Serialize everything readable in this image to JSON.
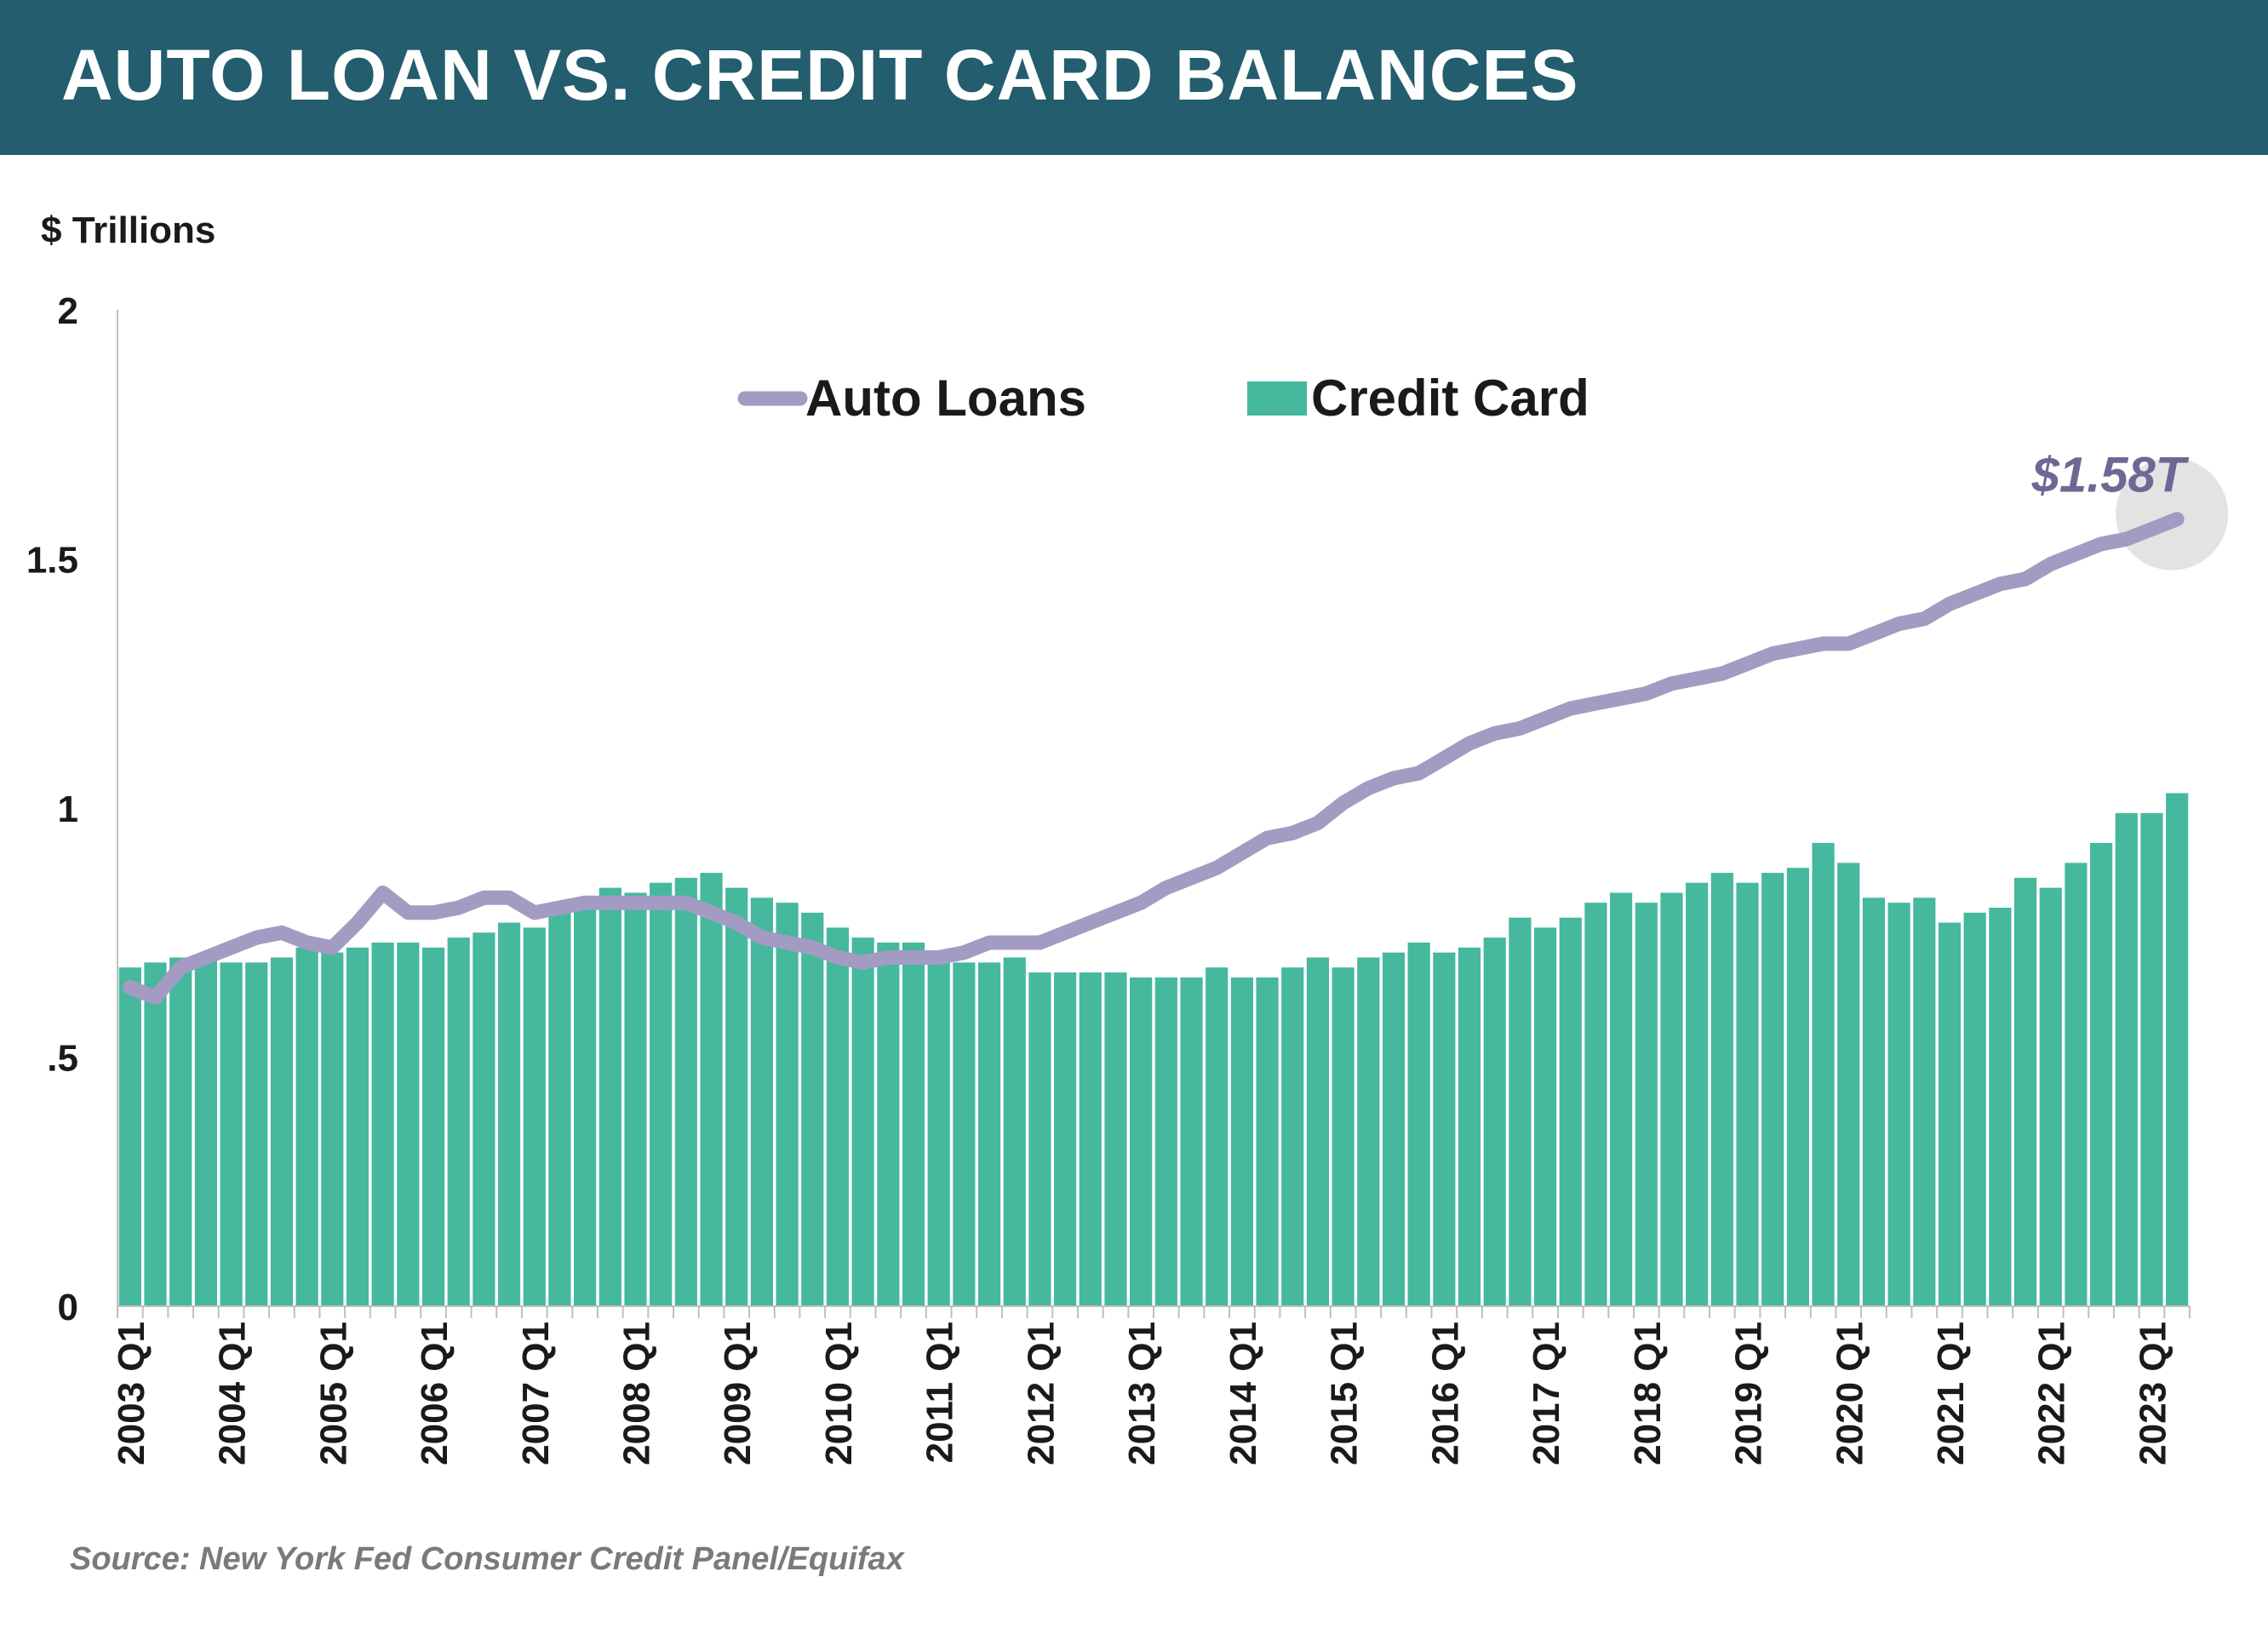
{
  "header": {
    "title": "AUTO LOAN VS. CREDIT CARD BALANCES"
  },
  "source": "Source: New York Fed Consumer Credit Panel/Equifax",
  "colors": {
    "banner": "#235d6e",
    "auto_loans": "#a49bc3",
    "credit_card": "#45b89e",
    "annotation": "#6f6794",
    "highlight": "#e3e3e3"
  },
  "chart_data": {
    "type": "bar+line",
    "ylabel": "$ Trillions",
    "ylim": [
      0,
      2
    ],
    "yticks": [
      {
        "value": 0,
        "label": "0"
      },
      {
        "value": 0.5,
        "label": ".5"
      },
      {
        "value": 1,
        "label": "1"
      },
      {
        "value": 1.5,
        "label": "1.5"
      },
      {
        "value": 2,
        "label": "2"
      }
    ],
    "x_start": "2003 Q1",
    "xtick_labels": [
      "2003 Q1",
      "2004 Q1",
      "2005 Q1",
      "2006 Q1",
      "2007 Q1",
      "2008 Q1",
      "2009 Q1",
      "2010 Q1",
      "2011 Q1",
      "2012 Q1",
      "2013 Q1",
      "2014 Q1",
      "2015 Q1",
      "2016 Q1",
      "2017 Q1",
      "2018 Q1",
      "2019 Q1",
      "2020 Q1",
      "2021 Q1",
      "2022 Q1",
      "2023 Q1"
    ],
    "legend": [
      "Auto Loans",
      "Credit Card"
    ],
    "legend_position": "top-center",
    "series": [
      {
        "name": "Credit Card",
        "type": "bar",
        "values": [
          0.68,
          0.69,
          0.7,
          0.7,
          0.69,
          0.69,
          0.7,
          0.72,
          0.71,
          0.72,
          0.73,
          0.73,
          0.72,
          0.74,
          0.75,
          0.77,
          0.76,
          0.8,
          0.82,
          0.84,
          0.83,
          0.85,
          0.86,
          0.87,
          0.84,
          0.82,
          0.81,
          0.79,
          0.76,
          0.74,
          0.73,
          0.73,
          0.69,
          0.69,
          0.69,
          0.7,
          0.67,
          0.67,
          0.67,
          0.67,
          0.66,
          0.66,
          0.66,
          0.68,
          0.66,
          0.66,
          0.68,
          0.7,
          0.68,
          0.7,
          0.71,
          0.73,
          0.71,
          0.72,
          0.74,
          0.78,
          0.76,
          0.78,
          0.81,
          0.83,
          0.81,
          0.83,
          0.85,
          0.87,
          0.85,
          0.87,
          0.88,
          0.93,
          0.89,
          0.82,
          0.81,
          0.82,
          0.77,
          0.79,
          0.8,
          0.86,
          0.84,
          0.89,
          0.93,
          0.99,
          0.99,
          1.03
        ]
      },
      {
        "name": "Auto Loans",
        "type": "line",
        "values": [
          0.64,
          0.62,
          0.68,
          0.7,
          0.72,
          0.74,
          0.75,
          0.73,
          0.72,
          0.77,
          0.83,
          0.79,
          0.79,
          0.8,
          0.82,
          0.82,
          0.79,
          0.8,
          0.81,
          0.81,
          0.81,
          0.81,
          0.81,
          0.79,
          0.77,
          0.74,
          0.73,
          0.72,
          0.7,
          0.69,
          0.7,
          0.7,
          0.7,
          0.71,
          0.73,
          0.73,
          0.73,
          0.75,
          0.77,
          0.79,
          0.81,
          0.84,
          0.86,
          0.88,
          0.91,
          0.94,
          0.95,
          0.97,
          1.01,
          1.04,
          1.06,
          1.07,
          1.1,
          1.13,
          1.15,
          1.16,
          1.18,
          1.2,
          1.21,
          1.22,
          1.23,
          1.25,
          1.26,
          1.27,
          1.29,
          1.31,
          1.32,
          1.33,
          1.33,
          1.35,
          1.37,
          1.38,
          1.41,
          1.43,
          1.45,
          1.46,
          1.49,
          1.51,
          1.53,
          1.54,
          1.56,
          1.58
        ]
      }
    ],
    "annotations": [
      {
        "series": "Auto Loans",
        "point": "last",
        "text": "$1.58T"
      }
    ]
  }
}
